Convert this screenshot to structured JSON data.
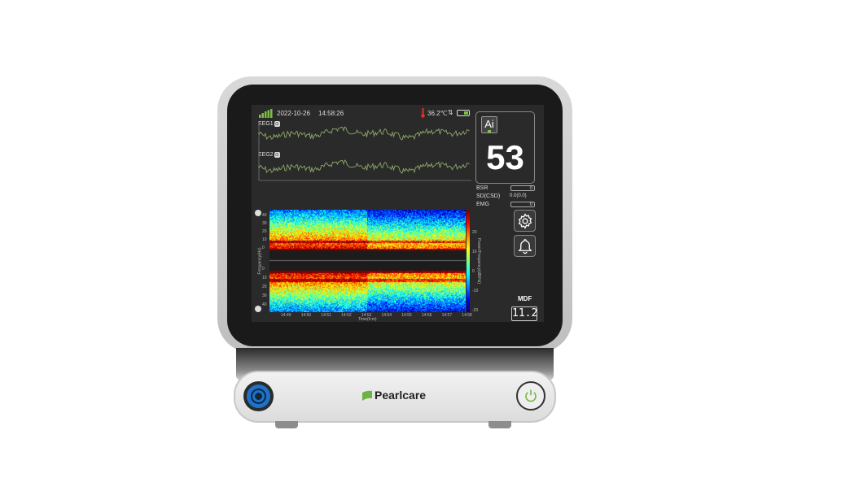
{
  "status_bar": {
    "date": "2022-10-26",
    "time": "14:58:26",
    "temperature": "36.2℃",
    "signal_icon": "signal-bars-icon",
    "battery_icon": "battery-icon"
  },
  "channels": [
    {
      "label": "EEG1",
      "badge": "⊙"
    },
    {
      "label": "EEG2",
      "badge": "⊙"
    }
  ],
  "index_panel": {
    "logo": "Ai",
    "value": "53"
  },
  "parameters": [
    {
      "label": "BSR",
      "value": "0"
    },
    {
      "label": "SD(CSD)",
      "value": "0.0(0.0)"
    },
    {
      "label": "EMG",
      "value": "0"
    }
  ],
  "buttons": {
    "settings_icon": "gear-icon",
    "alarm_icon": "bell-icon"
  },
  "spectrogram": {
    "freq_ticks_top": [
      "40",
      "30",
      "20",
      "10",
      "0"
    ],
    "freq_ticks_bottom": [
      "0",
      "10",
      "20",
      "30",
      "40"
    ],
    "time_ticks": [
      "14:49",
      "14:50",
      "14:51",
      "14:52",
      "14:53",
      "14:54",
      "14:55",
      "14:56",
      "14:57",
      "14:58"
    ],
    "ylabel": "Frequency(Hz)",
    "xlabel": "Time(h:m)",
    "colorbar_label": "Power/Frequency(dB/Hz)",
    "colorbar_ticks": [
      "20",
      "10",
      "0",
      "-10",
      "-20"
    ]
  },
  "mdf": {
    "label": "MDF",
    "value": "11.2"
  },
  "device": {
    "brand": "Pearlcare",
    "accent": "#6cb33f",
    "connector_color": "#1e73c8"
  }
}
